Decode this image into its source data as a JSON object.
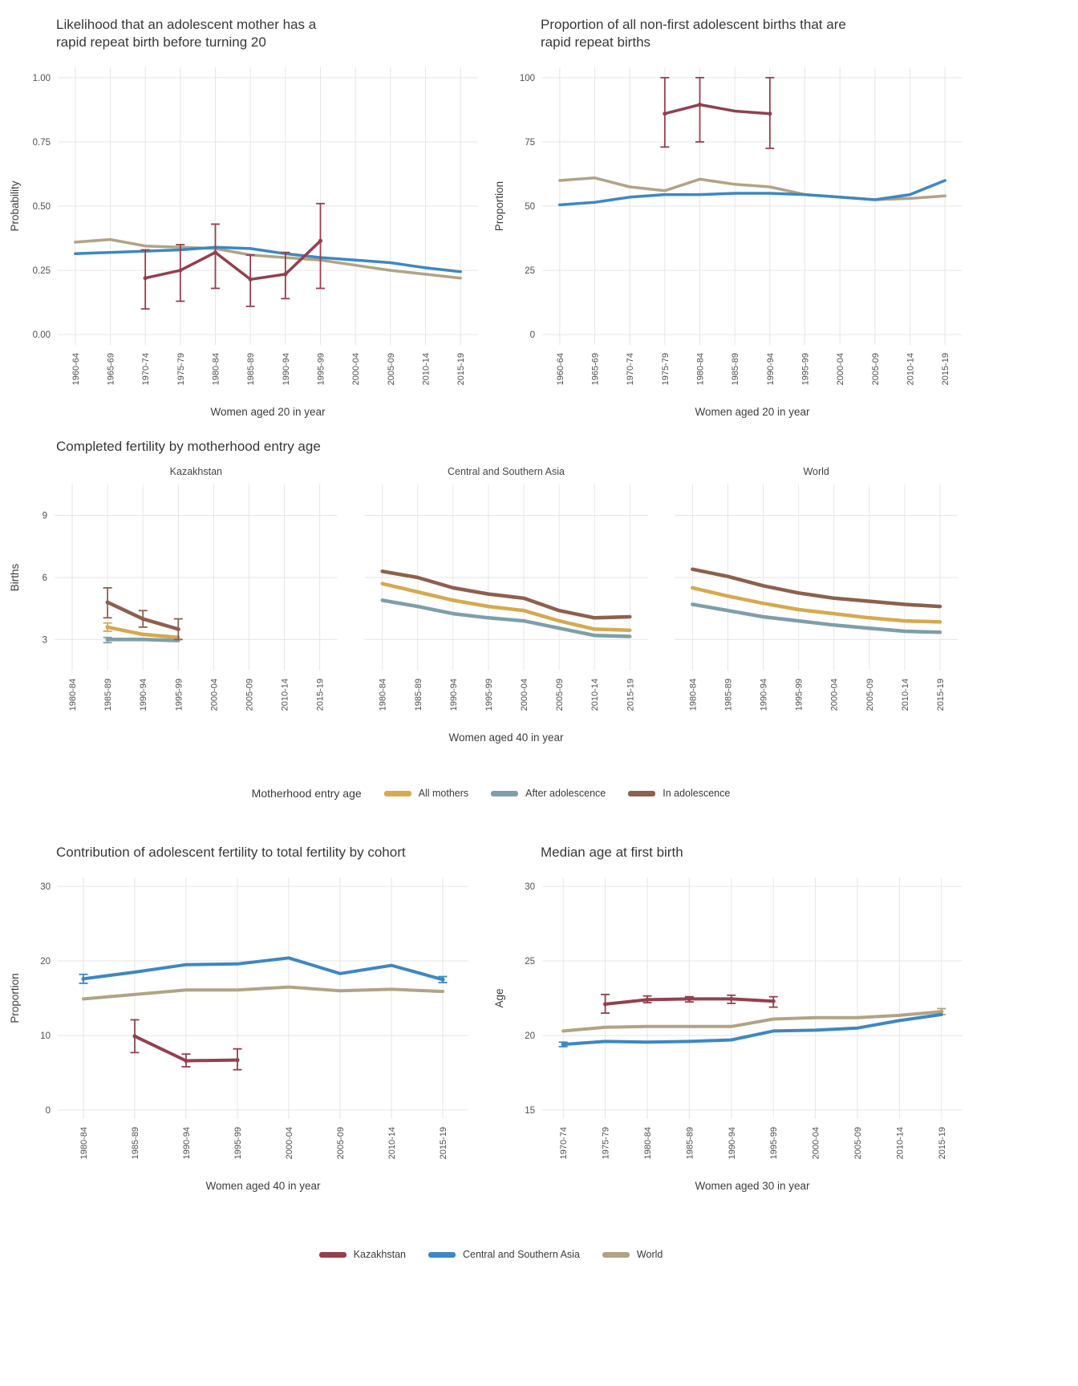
{
  "figure": {
    "background": "#ffffff"
  },
  "legends": {
    "motherhood": {
      "title": "Motherhood entry age",
      "items": [
        {
          "label": "All mothers",
          "color": "#d6a94f"
        },
        {
          "label": "After adolescence",
          "color": "#7f9eab"
        },
        {
          "label": "In adolescence",
          "color": "#8d604d"
        }
      ]
    },
    "region": {
      "title": "",
      "items": [
        {
          "label": "Kazakhstan",
          "color": "#93404e"
        },
        {
          "label": "Central and Southern Asia",
          "color": "#3d87c3"
        },
        {
          "label": "World",
          "color": "#b1a384"
        }
      ]
    }
  },
  "chart_data": [
    {
      "id": "rrb-likelihood",
      "type": "line",
      "title": "Likelihood that an adolescent mother has a\nrapid repeat birth before turning 20",
      "xlabel": "Women aged 20 in year",
      "ylabel": "Probability",
      "grid": true,
      "legend_position": "none",
      "categories": [
        "1960-64",
        "1965-69",
        "1970-74",
        "1975-79",
        "1980-84",
        "1985-89",
        "1990-94",
        "1995-99",
        "2000-04",
        "2005-09",
        "2010-14",
        "2015-19"
      ],
      "ylim": [
        -0.04,
        1.04
      ],
      "yticks": [
        {
          "v": 0,
          "label": "0.00"
        },
        {
          "v": 0.25,
          "label": "0.25"
        },
        {
          "v": 0.5,
          "label": "0.50"
        },
        {
          "v": 0.75,
          "label": "0.75"
        },
        {
          "v": 1,
          "label": "1.00"
        }
      ],
      "series": [
        {
          "name": "World",
          "color": "#b1a384",
          "values": [
            0.36,
            0.37,
            0.345,
            0.34,
            0.335,
            0.31,
            0.3,
            0.29,
            0.27,
            0.25,
            0.235,
            0.22
          ]
        },
        {
          "name": "Central and Southern Asia",
          "color": "#3d87c3",
          "values": [
            0.315,
            0.32,
            0.325,
            0.33,
            0.34,
            0.335,
            0.315,
            0.3,
            0.29,
            0.28,
            0.26,
            0.245
          ]
        },
        {
          "name": "Kazakhstan",
          "color": "#93404e",
          "values": [
            null,
            null,
            0.22,
            0.25,
            0.32,
            0.215,
            0.235,
            0.365,
            null,
            null,
            null,
            null
          ],
          "lower": [
            null,
            null,
            0.1,
            0.13,
            0.18,
            0.11,
            0.14,
            0.18,
            null,
            null,
            null,
            null
          ],
          "upper": [
            null,
            null,
            0.33,
            0.35,
            0.43,
            0.31,
            0.32,
            0.51,
            null,
            null,
            null,
            null
          ]
        }
      ]
    },
    {
      "id": "rrb-proportion",
      "type": "line",
      "title": "Proportion of all non-first adolescent births that are\nrapid repeat births",
      "xlabel": "Women aged 20 in year",
      "ylabel": "Proportion",
      "grid": true,
      "legend_position": "none",
      "categories": [
        "1960-64",
        "1965-69",
        "1970-74",
        "1975-79",
        "1980-84",
        "1985-89",
        "1990-94",
        "1995-99",
        "2000-04",
        "2005-09",
        "2010-14",
        "2015-19"
      ],
      "ylim": [
        -4,
        104
      ],
      "yticks": [
        {
          "v": 0,
          "label": "0"
        },
        {
          "v": 25,
          "label": "25"
        },
        {
          "v": 50,
          "label": "50"
        },
        {
          "v": 75,
          "label": "75"
        },
        {
          "v": 100,
          "label": "100"
        }
      ],
      "series": [
        {
          "name": "World",
          "color": "#b1a384",
          "values": [
            60,
            61,
            57.5,
            56,
            60.5,
            58.5,
            57.5,
            54.5,
            53.5,
            52.5,
            53,
            54
          ]
        },
        {
          "name": "Central and Southern Asia",
          "color": "#3d87c3",
          "values": [
            50.5,
            51.5,
            53.5,
            54.5,
            54.5,
            55,
            55,
            54.5,
            53.5,
            52.5,
            54.5,
            60
          ]
        },
        {
          "name": "Kazakhstan",
          "color": "#93404e",
          "values": [
            null,
            null,
            null,
            86,
            89.5,
            87,
            86,
            null,
            null,
            null,
            null,
            null
          ],
          "lower": [
            null,
            null,
            null,
            73,
            75,
            null,
            72.5,
            null,
            null,
            null,
            null,
            null
          ],
          "upper": [
            null,
            null,
            null,
            100,
            100,
            null,
            100,
            null,
            null,
            null,
            null,
            null
          ]
        }
      ]
    },
    {
      "id": "completed-fertility",
      "type": "line",
      "title": "Completed fertility by motherhood entry age",
      "xlabel": "Women aged 40 in year",
      "ylabel": "Births",
      "grid": true,
      "legend_position": "bottom",
      "categories": [
        "1980-84",
        "1985-89",
        "1990-94",
        "1995-99",
        "2000-04",
        "2005-09",
        "2010-14",
        "2015-19"
      ],
      "ylim": [
        1.5,
        10.5
      ],
      "yticks": [
        {
          "v": 3,
          "label": "3"
        },
        {
          "v": 6,
          "label": "6"
        },
        {
          "v": 9,
          "label": "9"
        }
      ],
      "facets": [
        {
          "label": "Kazakhstan",
          "series": [
            {
              "name": "All mothers",
              "color": "#d6a94f",
              "values": [
                null,
                3.6,
                3.25,
                3.1,
                null,
                null,
                null,
                null
              ],
              "lower": [
                null,
                3.4,
                null,
                null,
                null,
                null,
                null,
                null
              ],
              "upper": [
                null,
                3.8,
                null,
                null,
                null,
                null,
                null,
                null
              ]
            },
            {
              "name": "After adolescence",
              "color": "#7f9eab",
              "values": [
                null,
                3.0,
                3.0,
                2.95,
                null,
                null,
                null,
                null
              ],
              "lower": [
                null,
                2.85,
                null,
                null,
                null,
                null,
                null,
                null
              ],
              "upper": [
                null,
                3.1,
                null,
                null,
                null,
                null,
                null,
                null
              ]
            },
            {
              "name": "In adolescence",
              "color": "#8d604d",
              "values": [
                null,
                4.8,
                4.0,
                3.5,
                null,
                null,
                null,
                null
              ],
              "lower": [
                null,
                4.05,
                3.6,
                3.0,
                null,
                null,
                null,
                null
              ],
              "upper": [
                null,
                5.5,
                4.4,
                4.0,
                null,
                null,
                null,
                null
              ]
            }
          ]
        },
        {
          "label": "Central and Southern Asia",
          "series": [
            {
              "name": "All mothers",
              "color": "#d6a94f",
              "values": [
                5.7,
                5.3,
                4.9,
                4.6,
                4.4,
                3.9,
                3.5,
                3.45
              ]
            },
            {
              "name": "After adolescence",
              "color": "#7f9eab",
              "values": [
                4.9,
                4.6,
                4.25,
                4.05,
                3.9,
                3.55,
                3.2,
                3.15
              ]
            },
            {
              "name": "In adolescence",
              "color": "#8d604d",
              "values": [
                6.3,
                6.0,
                5.5,
                5.2,
                5.0,
                4.4,
                4.05,
                4.1
              ]
            }
          ]
        },
        {
          "label": "World",
          "series": [
            {
              "name": "All mothers",
              "color": "#d6a94f",
              "values": [
                5.5,
                5.1,
                4.75,
                4.45,
                4.25,
                4.05,
                3.9,
                3.85
              ]
            },
            {
              "name": "After adolescence",
              "color": "#7f9eab",
              "values": [
                4.7,
                4.4,
                4.1,
                3.9,
                3.7,
                3.55,
                3.4,
                3.35
              ]
            },
            {
              "name": "In adolescence",
              "color": "#8d604d",
              "values": [
                6.4,
                6.05,
                5.6,
                5.25,
                5.0,
                4.85,
                4.7,
                4.6
              ]
            }
          ]
        }
      ]
    },
    {
      "id": "adolescent-contribution",
      "type": "line",
      "title": "Contribution of adolescent fertility to total fertility by cohort",
      "xlabel": "Women aged 40 in year",
      "ylabel": "Proportion",
      "grid": true,
      "legend_position": "none",
      "categories": [
        "1980-84",
        "1985-89",
        "1990-94",
        "1995-99",
        "2000-04",
        "2005-09",
        "2010-14",
        "2015-19"
      ],
      "ylim": [
        -1.2,
        31.2
      ],
      "yticks": [
        {
          "v": 0,
          "label": "0"
        },
        {
          "v": 10,
          "label": "10"
        },
        {
          "v": 20,
          "label": "20"
        },
        {
          "v": 30,
          "label": "30"
        }
      ],
      "series": [
        {
          "name": "World",
          "color": "#b1a384",
          "values": [
            14.9,
            15.5,
            16.1,
            16.1,
            16.5,
            16.0,
            16.2,
            15.9
          ]
        },
        {
          "name": "Central and Southern Asia",
          "color": "#3d87c3",
          "values": [
            17.6,
            18.5,
            19.5,
            19.6,
            20.4,
            18.3,
            19.4,
            17.5
          ],
          "lower": [
            17.0,
            null,
            null,
            null,
            null,
            null,
            null,
            17.1
          ],
          "upper": [
            18.2,
            null,
            null,
            null,
            null,
            null,
            null,
            17.9
          ]
        },
        {
          "name": "Kazakhstan",
          "color": "#93404e",
          "values": [
            null,
            9.9,
            6.6,
            6.7,
            null,
            null,
            null,
            null
          ],
          "lower": [
            null,
            7.7,
            5.8,
            5.4,
            null,
            null,
            null,
            null
          ],
          "upper": [
            null,
            12.1,
            7.5,
            8.2,
            null,
            null,
            null,
            null
          ]
        }
      ]
    },
    {
      "id": "median-age-first-birth",
      "type": "line",
      "title": "Median age at first birth",
      "xlabel": "Women aged 30 in year",
      "ylabel": "Age",
      "grid": true,
      "legend_position": "none",
      "categories": [
        "1970-74",
        "1975-79",
        "1980-84",
        "1985-89",
        "1990-94",
        "1995-99",
        "2000-04",
        "2005-09",
        "2010-14",
        "2015-19"
      ],
      "ylim": [
        14.4,
        30.6
      ],
      "yticks": [
        {
          "v": 15,
          "label": "15"
        },
        {
          "v": 20,
          "label": "20"
        },
        {
          "v": 25,
          "label": "25"
        },
        {
          "v": 30,
          "label": "30"
        }
      ],
      "series": [
        {
          "name": "World",
          "color": "#b1a384",
          "values": [
            20.3,
            20.55,
            20.6,
            20.6,
            20.6,
            21.1,
            21.2,
            21.2,
            21.35,
            21.6
          ],
          "lower": [
            null,
            null,
            null,
            null,
            null,
            null,
            null,
            null,
            null,
            21.4
          ],
          "upper": [
            null,
            null,
            null,
            null,
            null,
            null,
            null,
            null,
            null,
            21.8
          ]
        },
        {
          "name": "Central and Southern Asia",
          "color": "#3d87c3",
          "values": [
            19.4,
            19.6,
            19.55,
            19.6,
            19.7,
            20.3,
            20.35,
            20.5,
            21.0,
            21.4
          ],
          "lower": [
            19.25,
            null,
            null,
            null,
            null,
            null,
            null,
            null,
            null,
            null
          ],
          "upper": [
            19.55,
            null,
            null,
            null,
            null,
            null,
            null,
            null,
            null,
            null
          ]
        },
        {
          "name": "Kazakhstan",
          "color": "#93404e",
          "values": [
            null,
            22.1,
            22.4,
            22.45,
            22.45,
            22.3,
            null,
            null,
            null,
            null
          ],
          "lower": [
            null,
            21.5,
            22.2,
            22.25,
            22.15,
            21.9,
            null,
            null,
            null,
            null
          ],
          "upper": [
            null,
            22.75,
            22.65,
            22.6,
            22.7,
            22.6,
            null,
            null,
            null,
            null
          ]
        }
      ]
    }
  ]
}
